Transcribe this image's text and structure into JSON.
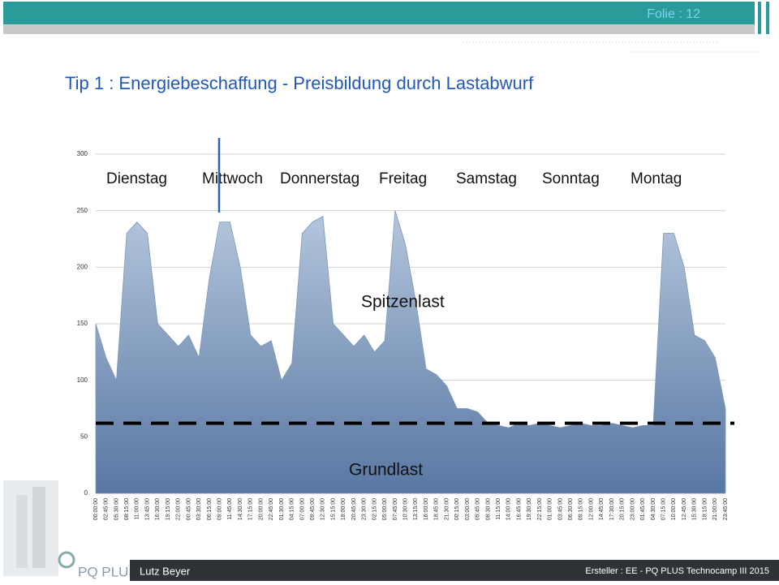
{
  "slide": {
    "folio": "Folie : 12",
    "title": "Tip 1 : Energiebeschaffung - Preisbildung durch Lastabwurf",
    "logo": "PQ PLUS",
    "author": "Lutz Beyer",
    "footer": "Ersteller : EE -   PQ PLUS Technocamp III 2015"
  },
  "chart_data": {
    "type": "area",
    "color": "#7b97bd",
    "categories": [
      "00:00:00",
      "02:45:00",
      "05:30:00",
      "08:15:00",
      "11:00:00",
      "13:45:00",
      "16:30:00",
      "19:15:00",
      "22:00:00",
      "00:45:00",
      "03:30:00",
      "06:15:00",
      "09:00:00",
      "11:45:00",
      "14:30:00",
      "17:15:00",
      "20:00:00",
      "22:45:00",
      "01:30:00",
      "04:15:00",
      "07:00:00",
      "09:45:00",
      "12:30:00",
      "15:15:00",
      "18:00:00",
      "20:45:00",
      "23:30:00",
      "02:15:00",
      "05:00:00",
      "07:45:00",
      "10:30:00",
      "13:15:00",
      "16:00:00",
      "18:45:00",
      "21:30:00",
      "00:15:00",
      "03:00:00",
      "05:45:00",
      "08:30:00",
      "11:15:00",
      "14:00:00",
      "16:45:00",
      "19:30:00",
      "22:15:00",
      "01:00:00",
      "03:45:00",
      "06:30:00",
      "09:15:00",
      "12:00:00",
      "14:45:00",
      "17:30:00",
      "20:15:00",
      "23:00:00",
      "01:45:00",
      "04:30:00",
      "07:15:00",
      "10:00:00",
      "12:45:00",
      "15:30:00",
      "18:15:00",
      "21:00:00",
      "23:45:00"
    ],
    "values": [
      150,
      120,
      100,
      230,
      240,
      230,
      150,
      140,
      130,
      140,
      120,
      190,
      240,
      240,
      200,
      140,
      130,
      135,
      100,
      115,
      230,
      240,
      245,
      150,
      140,
      130,
      140,
      125,
      135,
      250,
      220,
      170,
      110,
      105,
      95,
      75,
      75,
      72,
      62,
      60,
      58,
      62,
      60,
      62,
      60,
      58,
      60,
      62,
      60,
      60,
      62,
      60,
      58,
      60,
      60,
      230,
      230,
      200,
      140,
      135,
      120,
      75
    ],
    "ylim": [
      0,
      300
    ],
    "yticks": [
      0,
      50,
      100,
      150,
      200,
      250,
      300
    ],
    "grid": true,
    "baseline": 62,
    "day_labels": [
      "Dienstag",
      "Mittwoch",
      "Donnerstag",
      "Freitag",
      "Samstag",
      "Sonntag",
      "Montag"
    ],
    "annotations": [
      "Spitzenlast",
      "Grundlast"
    ]
  }
}
